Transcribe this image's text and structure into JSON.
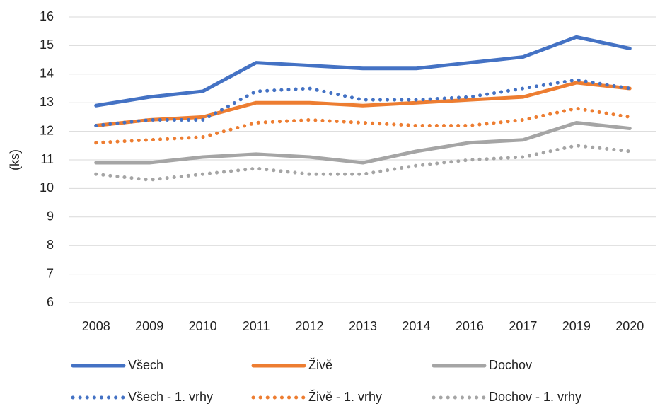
{
  "chart_data": {
    "type": "line",
    "y_label": "(ks)",
    "categories": [
      "2008",
      "2009",
      "2010",
      "2011",
      "2012",
      "2013",
      "2014",
      "2016",
      "2017",
      "2019",
      "2020"
    ],
    "series": [
      {
        "name": "Všech",
        "color": "#4472c4",
        "line_style": "solid",
        "values": [
          12.9,
          13.2,
          13.4,
          14.4,
          14.3,
          14.2,
          14.2,
          14.4,
          14.6,
          15.3,
          14.9
        ]
      },
      {
        "name": "Živě",
        "color": "#ed7d31",
        "line_style": "solid",
        "values": [
          12.2,
          12.4,
          12.5,
          13.0,
          13.0,
          12.9,
          13.0,
          13.1,
          13.2,
          13.7,
          13.5
        ]
      },
      {
        "name": "Dochov",
        "color": "#a5a5a5",
        "line_style": "solid",
        "values": [
          10.9,
          10.9,
          11.1,
          11.2,
          11.1,
          10.9,
          11.3,
          11.6,
          11.7,
          12.3,
          12.1
        ]
      },
      {
        "name": "Všech - 1. vrhy",
        "color": "#4472c4",
        "line_style": "dotted",
        "values": [
          12.2,
          12.4,
          12.4,
          13.4,
          13.5,
          13.1,
          13.1,
          13.2,
          13.5,
          13.8,
          13.5
        ]
      },
      {
        "name": "Živě - 1. vrhy",
        "color": "#ed7d31",
        "line_style": "dotted",
        "values": [
          11.6,
          11.7,
          11.8,
          12.3,
          12.4,
          12.3,
          12.2,
          12.2,
          12.4,
          12.8,
          12.5
        ]
      },
      {
        "name": "Dochov - 1. vrhy",
        "color": "#a5a5a5",
        "line_style": "dotted",
        "values": [
          10.5,
          10.3,
          10.5,
          10.7,
          10.5,
          10.5,
          10.8,
          11.0,
          11.1,
          11.5,
          11.3
        ]
      }
    ],
    "ylim": [
      6,
      16
    ],
    "yticks": [
      6,
      7,
      8,
      9,
      10,
      11,
      12,
      13,
      14,
      15,
      16
    ],
    "grid": true,
    "legend_position": "bottom"
  }
}
